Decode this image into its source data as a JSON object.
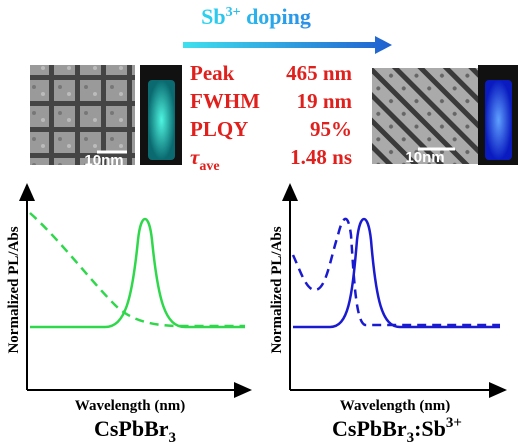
{
  "header": {
    "arrow_label": {
      "base": "Sb",
      "sup": "3+",
      "rest": " doping"
    }
  },
  "properties": [
    {
      "label": "Peak",
      "value": "465 nm"
    },
    {
      "label": "FWHM",
      "value": "19 nm"
    },
    {
      "label": "PLQY",
      "value": "95%"
    },
    {
      "label": {
        "base": "τ",
        "sub": "ave"
      },
      "value": "1.48 ns"
    }
  ],
  "panels": [
    {
      "scale_bar": "10nm",
      "y_label": "Normalized PL/Abs",
      "x_label": "Wavelength (nm)",
      "compound": {
        "base": "CsPbBr",
        "sub": "3"
      }
    },
    {
      "scale_bar": "10nm",
      "y_label": "Normalized PL/Abs",
      "x_label": "Wavelength (nm)",
      "compound": {
        "base": "CsPbBr",
        "sub": "3",
        "rest": ":Sb",
        "sup": "3+"
      }
    }
  ]
}
